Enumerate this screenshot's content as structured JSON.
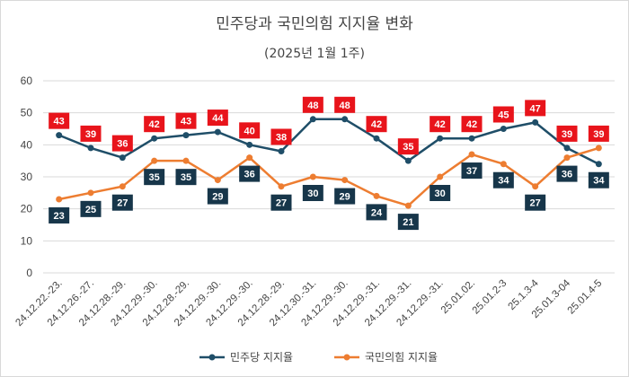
{
  "chart_data": {
    "type": "line",
    "title": "민주당과 국민의힘 지지율 변화",
    "subtitle": "(2025년 1월 1주)",
    "categories": [
      "24.12.22.-23.",
      "24.12.26.-27.",
      "24.12.28.-29.",
      "24.12.29.-30.",
      "24.12.28.-29.",
      "24.12.29.-30.",
      "24.12.29.-30.",
      "24.12.28.-29.",
      "24.12.30.-31.",
      "24.12.29.-30.",
      "24.12.29.-31.",
      "24.12.29.-31.",
      "24.12.29.-31.",
      "25.01.02.",
      "25.01.2-3",
      "25.1.3-4",
      "25.01.3-04",
      "25.01.4-5"
    ],
    "ylim": [
      0,
      60
    ],
    "yticks": [
      0,
      10,
      20,
      30,
      40,
      50,
      60
    ],
    "grid": true,
    "legend_position": "bottom",
    "series": [
      {
        "name": "민주당 지지율",
        "color": "#1f4e68",
        "label_color": "#17364a",
        "values": [
          43,
          39,
          36,
          42,
          43,
          44,
          40,
          38,
          48,
          48,
          42,
          35,
          42,
          42,
          45,
          47,
          39,
          34
        ]
      },
      {
        "name": "국민의힘 지지율",
        "color": "#ed7d31",
        "label_color": "#17364a",
        "values": [
          23,
          25,
          27,
          35,
          35,
          29,
          36,
          27,
          30,
          29,
          24,
          21,
          30,
          37,
          34,
          27,
          36,
          39
        ]
      }
    ],
    "labels": {
      "upper_color": "#e8141b",
      "lower_color": "#17364a"
    }
  }
}
